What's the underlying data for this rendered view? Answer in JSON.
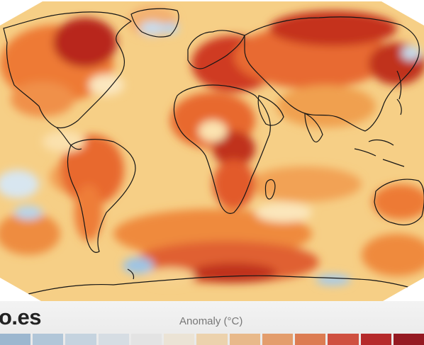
{
  "watermark": "o.es",
  "legend": {
    "title": "Anomaly (°C)",
    "swatches": [
      "#9cb7cf",
      "#b1c6d8",
      "#c5d3df",
      "#d6dde3",
      "#e3e3e3",
      "#ebe3d5",
      "#ecd2ad",
      "#e8b98a",
      "#e39d6c",
      "#dc7c52",
      "#cf5040",
      "#b52a2b",
      "#951a22"
    ]
  },
  "colors": {
    "ocean_base": "#f7d08a",
    "land_base": "#ec7a34",
    "hot": "#b3201c",
    "cool": "#a8c8e4",
    "coastline": "#151515"
  }
}
